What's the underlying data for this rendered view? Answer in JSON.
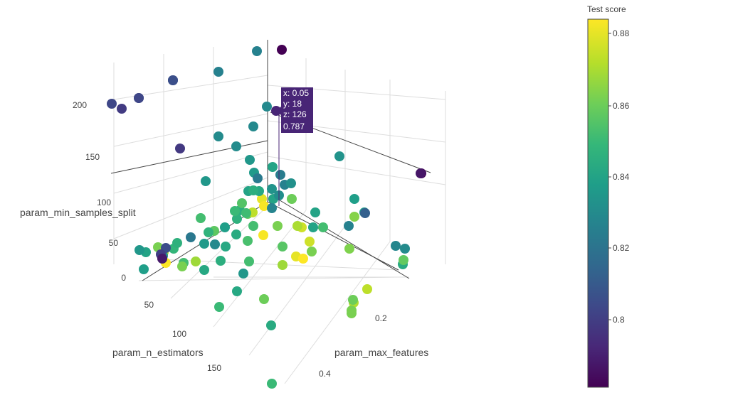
{
  "chart_data": {
    "type": "scatter3d",
    "axes": {
      "x": {
        "title": "param_max_features",
        "ticks": [
          "0.2",
          "0.4"
        ]
      },
      "y": {
        "title": "param_n_estimators",
        "ticks": [
          "50",
          "100",
          "150"
        ]
      },
      "z": {
        "title": "param_min_samples_split",
        "ticks": [
          "0",
          "50",
          "100",
          "150",
          "200"
        ]
      }
    },
    "colorbar": {
      "title": "Test score",
      "ticks": [
        "0.88",
        "0.86",
        "0.84",
        "0.82",
        "0.8"
      ],
      "colorscale": "viridis",
      "range": [
        0.781,
        0.884
      ]
    },
    "hover": {
      "x_label": "x: 0.05",
      "y_label": "y: 18",
      "z_label": "z: 126",
      "value_label": "0.787",
      "color": "#482576"
    },
    "points": [
      {
        "v": 0.826
      },
      {
        "v": 0.781
      },
      {
        "v": 0.826
      },
      {
        "v": 0.807
      },
      {
        "v": 0.803
      },
      {
        "v": 0.803
      },
      {
        "v": 0.799
      },
      {
        "v": 0.829
      },
      {
        "v": 0.83
      },
      {
        "v": 0.829
      },
      {
        "v": 0.798
      },
      {
        "v": 0.83
      },
      {
        "v": 0.781
      },
      {
        "v": 0.835
      },
      {
        "v": 0.835
      },
      {
        "v": 0.84
      },
      {
        "v": 0.833
      },
      {
        "v": 0.836
      },
      {
        "v": 0.84
      },
      {
        "v": 0.826
      },
      {
        "v": 0.833
      },
      {
        "v": 0.88
      },
      {
        "v": 0.84
      },
      {
        "v": 0.831
      },
      {
        "v": 0.86
      },
      {
        "v": 0.883
      },
      {
        "v": 0.845
      },
      {
        "v": 0.858
      },
      {
        "v": 0.846
      },
      {
        "v": 0.873
      },
      {
        "v": 0.852
      },
      {
        "v": 0.827
      },
      {
        "v": 0.84
      },
      {
        "v": 0.852
      },
      {
        "v": 0.857
      },
      {
        "v": 0.876
      },
      {
        "v": 0.84
      },
      {
        "v": 0.87
      },
      {
        "v": 0.883
      },
      {
        "v": 0.851
      },
      {
        "v": 0.862
      },
      {
        "v": 0.843
      },
      {
        "v": 0.842
      },
      {
        "v": 0.822
      },
      {
        "v": 0.836
      },
      {
        "v": 0.847
      },
      {
        "v": 0.853
      },
      {
        "v": 0.876
      },
      {
        "v": 0.88
      },
      {
        "v": 0.856
      },
      {
        "v": 0.862
      },
      {
        "v": 0.84
      },
      {
        "v": 0.862
      },
      {
        "v": 0.871
      },
      {
        "v": 0.884
      },
      {
        "v": 0.848
      },
      {
        "v": 0.846
      },
      {
        "v": 0.852
      },
      {
        "v": 0.842
      },
      {
        "v": 0.838
      },
      {
        "v": 0.835
      },
      {
        "v": 0.868
      },
      {
        "v": 0.83
      },
      {
        "v": 0.805
      },
      {
        "v": 0.8
      },
      {
        "v": 0.862
      },
      {
        "v": 0.845
      },
      {
        "v": 0.852
      },
      {
        "v": 0.835
      },
      {
        "v": 0.868
      },
      {
        "v": 0.884
      },
      {
        "v": 0.863
      },
      {
        "v": 0.852
      },
      {
        "v": 0.836
      },
      {
        "v": 0.838
      },
      {
        "v": 0.828
      },
      {
        "v": 0.843
      },
      {
        "v": 0.858
      },
      {
        "v": 0.864
      },
      {
        "v": 0.842
      },
      {
        "v": 0.86
      },
      {
        "v": 0.85
      },
      {
        "v": 0.871
      },
      {
        "v": 0.862
      },
      {
        "v": 0.86
      },
      {
        "v": 0.862
      },
      {
        "v": 0.873
      },
      {
        "v": 0.843
      },
      {
        "v": 0.85
      },
      {
        "v": 0.826
      },
      {
        "v": 0.812
      },
      {
        "v": 0.787
      },
      {
        "v": 0.83
      },
      {
        "v": 0.823
      },
      {
        "v": 0.824
      },
      {
        "v": 0.832
      },
      {
        "v": 0.842
      },
      {
        "v": 0.845
      },
      {
        "v": 0.855
      },
      {
        "v": 0.85
      },
      {
        "v": 0.838
      },
      {
        "v": 0.829
      },
      {
        "v": 0.788
      },
      {
        "v": 0.806
      },
      {
        "v": 0.803
      }
    ]
  }
}
